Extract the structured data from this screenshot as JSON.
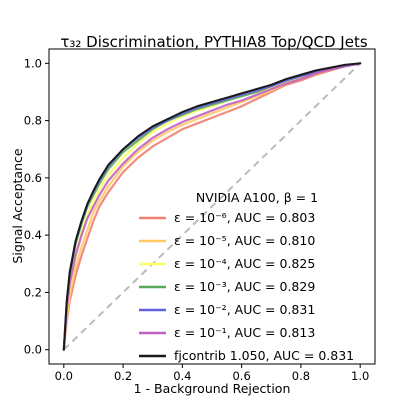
{
  "chart_data": {
    "type": "line",
    "title": "τ₃₂ Discrimination, PYTHIA8 Top/QCD Jets",
    "xlabel": "1 - Background Rejection",
    "ylabel": "Signal Acceptance",
    "xlim": [
      -0.05,
      1.05
    ],
    "ylim": [
      -0.05,
      1.05
    ],
    "x_ticks": [
      "0.0",
      "0.2",
      "0.4",
      "0.6",
      "0.8",
      "1.0"
    ],
    "y_ticks": [
      "0.0",
      "0.2",
      "0.4",
      "0.6",
      "0.8",
      "1.0"
    ],
    "grid": false,
    "legend_title": "NVIDIA A100, β = 1",
    "legend_position": "lower-right",
    "diagonal": {
      "x": [
        0,
        1
      ],
      "y": [
        0,
        1
      ],
      "color": "#bbbbbb",
      "style": "dashed"
    },
    "series": [
      {
        "name": "ε = 10⁻⁶, AUC = 0.803",
        "color": "#f08070",
        "x": [
          0,
          0.01,
          0.02,
          0.04,
          0.06,
          0.08,
          0.1,
          0.12,
          0.15,
          0.2,
          0.25,
          0.3,
          0.35,
          0.4,
          0.45,
          0.5,
          0.55,
          0.6,
          0.65,
          0.7,
          0.75,
          0.8,
          0.85,
          0.9,
          0.95,
          1.0
        ],
        "y": [
          0,
          0.1,
          0.17,
          0.26,
          0.33,
          0.39,
          0.45,
          0.5,
          0.55,
          0.62,
          0.67,
          0.71,
          0.74,
          0.77,
          0.79,
          0.81,
          0.83,
          0.85,
          0.875,
          0.9,
          0.925,
          0.94,
          0.96,
          0.975,
          0.99,
          1.0
        ]
      },
      {
        "name": "ε = 10⁻⁵, AUC = 0.810",
        "color": "#ffc966",
        "x": [
          0,
          0.01,
          0.02,
          0.04,
          0.06,
          0.08,
          0.1,
          0.12,
          0.15,
          0.2,
          0.25,
          0.3,
          0.35,
          0.4,
          0.45,
          0.5,
          0.55,
          0.6,
          0.65,
          0.7,
          0.75,
          0.8,
          0.85,
          0.9,
          0.95,
          1.0
        ],
        "y": [
          0,
          0.11,
          0.19,
          0.29,
          0.36,
          0.42,
          0.48,
          0.52,
          0.57,
          0.64,
          0.69,
          0.73,
          0.76,
          0.785,
          0.805,
          0.825,
          0.845,
          0.865,
          0.885,
          0.905,
          0.93,
          0.945,
          0.965,
          0.98,
          0.99,
          1.0
        ]
      },
      {
        "name": "ε = 10⁻⁴, AUC = 0.825",
        "color": "#ffff66",
        "x": [
          0,
          0.01,
          0.02,
          0.04,
          0.06,
          0.08,
          0.1,
          0.12,
          0.15,
          0.2,
          0.25,
          0.3,
          0.35,
          0.4,
          0.45,
          0.5,
          0.55,
          0.6,
          0.65,
          0.7,
          0.75,
          0.8,
          0.85,
          0.9,
          0.95,
          1.0
        ],
        "y": [
          0,
          0.13,
          0.22,
          0.33,
          0.41,
          0.47,
          0.52,
          0.56,
          0.61,
          0.67,
          0.72,
          0.76,
          0.79,
          0.815,
          0.835,
          0.85,
          0.87,
          0.885,
          0.9,
          0.915,
          0.935,
          0.95,
          0.97,
          0.98,
          0.99,
          1.0
        ]
      },
      {
        "name": "ε = 10⁻³, AUC = 0.829",
        "color": "#5aa85a",
        "x": [
          0,
          0.01,
          0.02,
          0.04,
          0.06,
          0.08,
          0.1,
          0.12,
          0.15,
          0.2,
          0.25,
          0.3,
          0.35,
          0.4,
          0.45,
          0.5,
          0.55,
          0.6,
          0.65,
          0.7,
          0.75,
          0.8,
          0.85,
          0.9,
          0.95,
          1.0
        ],
        "y": [
          0,
          0.16,
          0.26,
          0.37,
          0.44,
          0.5,
          0.54,
          0.58,
          0.63,
          0.69,
          0.73,
          0.77,
          0.8,
          0.82,
          0.84,
          0.855,
          0.87,
          0.885,
          0.9,
          0.92,
          0.94,
          0.955,
          0.97,
          0.98,
          0.99,
          1.0
        ]
      },
      {
        "name": "ε = 10⁻², AUC = 0.831",
        "color": "#6060dd",
        "x": [
          0,
          0.01,
          0.02,
          0.04,
          0.06,
          0.08,
          0.1,
          0.12,
          0.15,
          0.2,
          0.25,
          0.3,
          0.35,
          0.4,
          0.45,
          0.5,
          0.55,
          0.6,
          0.65,
          0.7,
          0.75,
          0.8,
          0.85,
          0.9,
          0.95,
          1.0
        ],
        "y": [
          0,
          0.17,
          0.27,
          0.38,
          0.45,
          0.51,
          0.55,
          0.59,
          0.64,
          0.7,
          0.74,
          0.775,
          0.8,
          0.825,
          0.845,
          0.86,
          0.875,
          0.89,
          0.905,
          0.92,
          0.94,
          0.955,
          0.97,
          0.98,
          0.99,
          1.0
        ]
      },
      {
        "name": "ε = 10⁻¹, AUC = 0.813",
        "color": "#c060c0",
        "x": [
          0,
          0.01,
          0.02,
          0.04,
          0.06,
          0.08,
          0.1,
          0.12,
          0.15,
          0.2,
          0.25,
          0.3,
          0.35,
          0.4,
          0.45,
          0.5,
          0.55,
          0.6,
          0.65,
          0.7,
          0.75,
          0.8,
          0.85,
          0.9,
          0.95,
          1.0
        ],
        "y": [
          0,
          0.14,
          0.23,
          0.33,
          0.4,
          0.46,
          0.5,
          0.54,
          0.59,
          0.65,
          0.7,
          0.74,
          0.77,
          0.795,
          0.815,
          0.835,
          0.855,
          0.87,
          0.89,
          0.91,
          0.93,
          0.945,
          0.965,
          0.98,
          0.99,
          1.0
        ]
      },
      {
        "name": "fjcontrib 1.050, AUC = 0.831",
        "color": "#1a1a1a",
        "x": [
          0,
          0.01,
          0.02,
          0.04,
          0.06,
          0.08,
          0.1,
          0.12,
          0.15,
          0.2,
          0.25,
          0.3,
          0.35,
          0.4,
          0.45,
          0.5,
          0.55,
          0.6,
          0.65,
          0.7,
          0.75,
          0.8,
          0.85,
          0.9,
          0.95,
          1.0
        ],
        "y": [
          0,
          0.17,
          0.27,
          0.38,
          0.45,
          0.51,
          0.555,
          0.595,
          0.645,
          0.7,
          0.745,
          0.78,
          0.805,
          0.83,
          0.85,
          0.865,
          0.88,
          0.895,
          0.91,
          0.925,
          0.945,
          0.96,
          0.975,
          0.985,
          0.995,
          1.0
        ]
      }
    ]
  }
}
